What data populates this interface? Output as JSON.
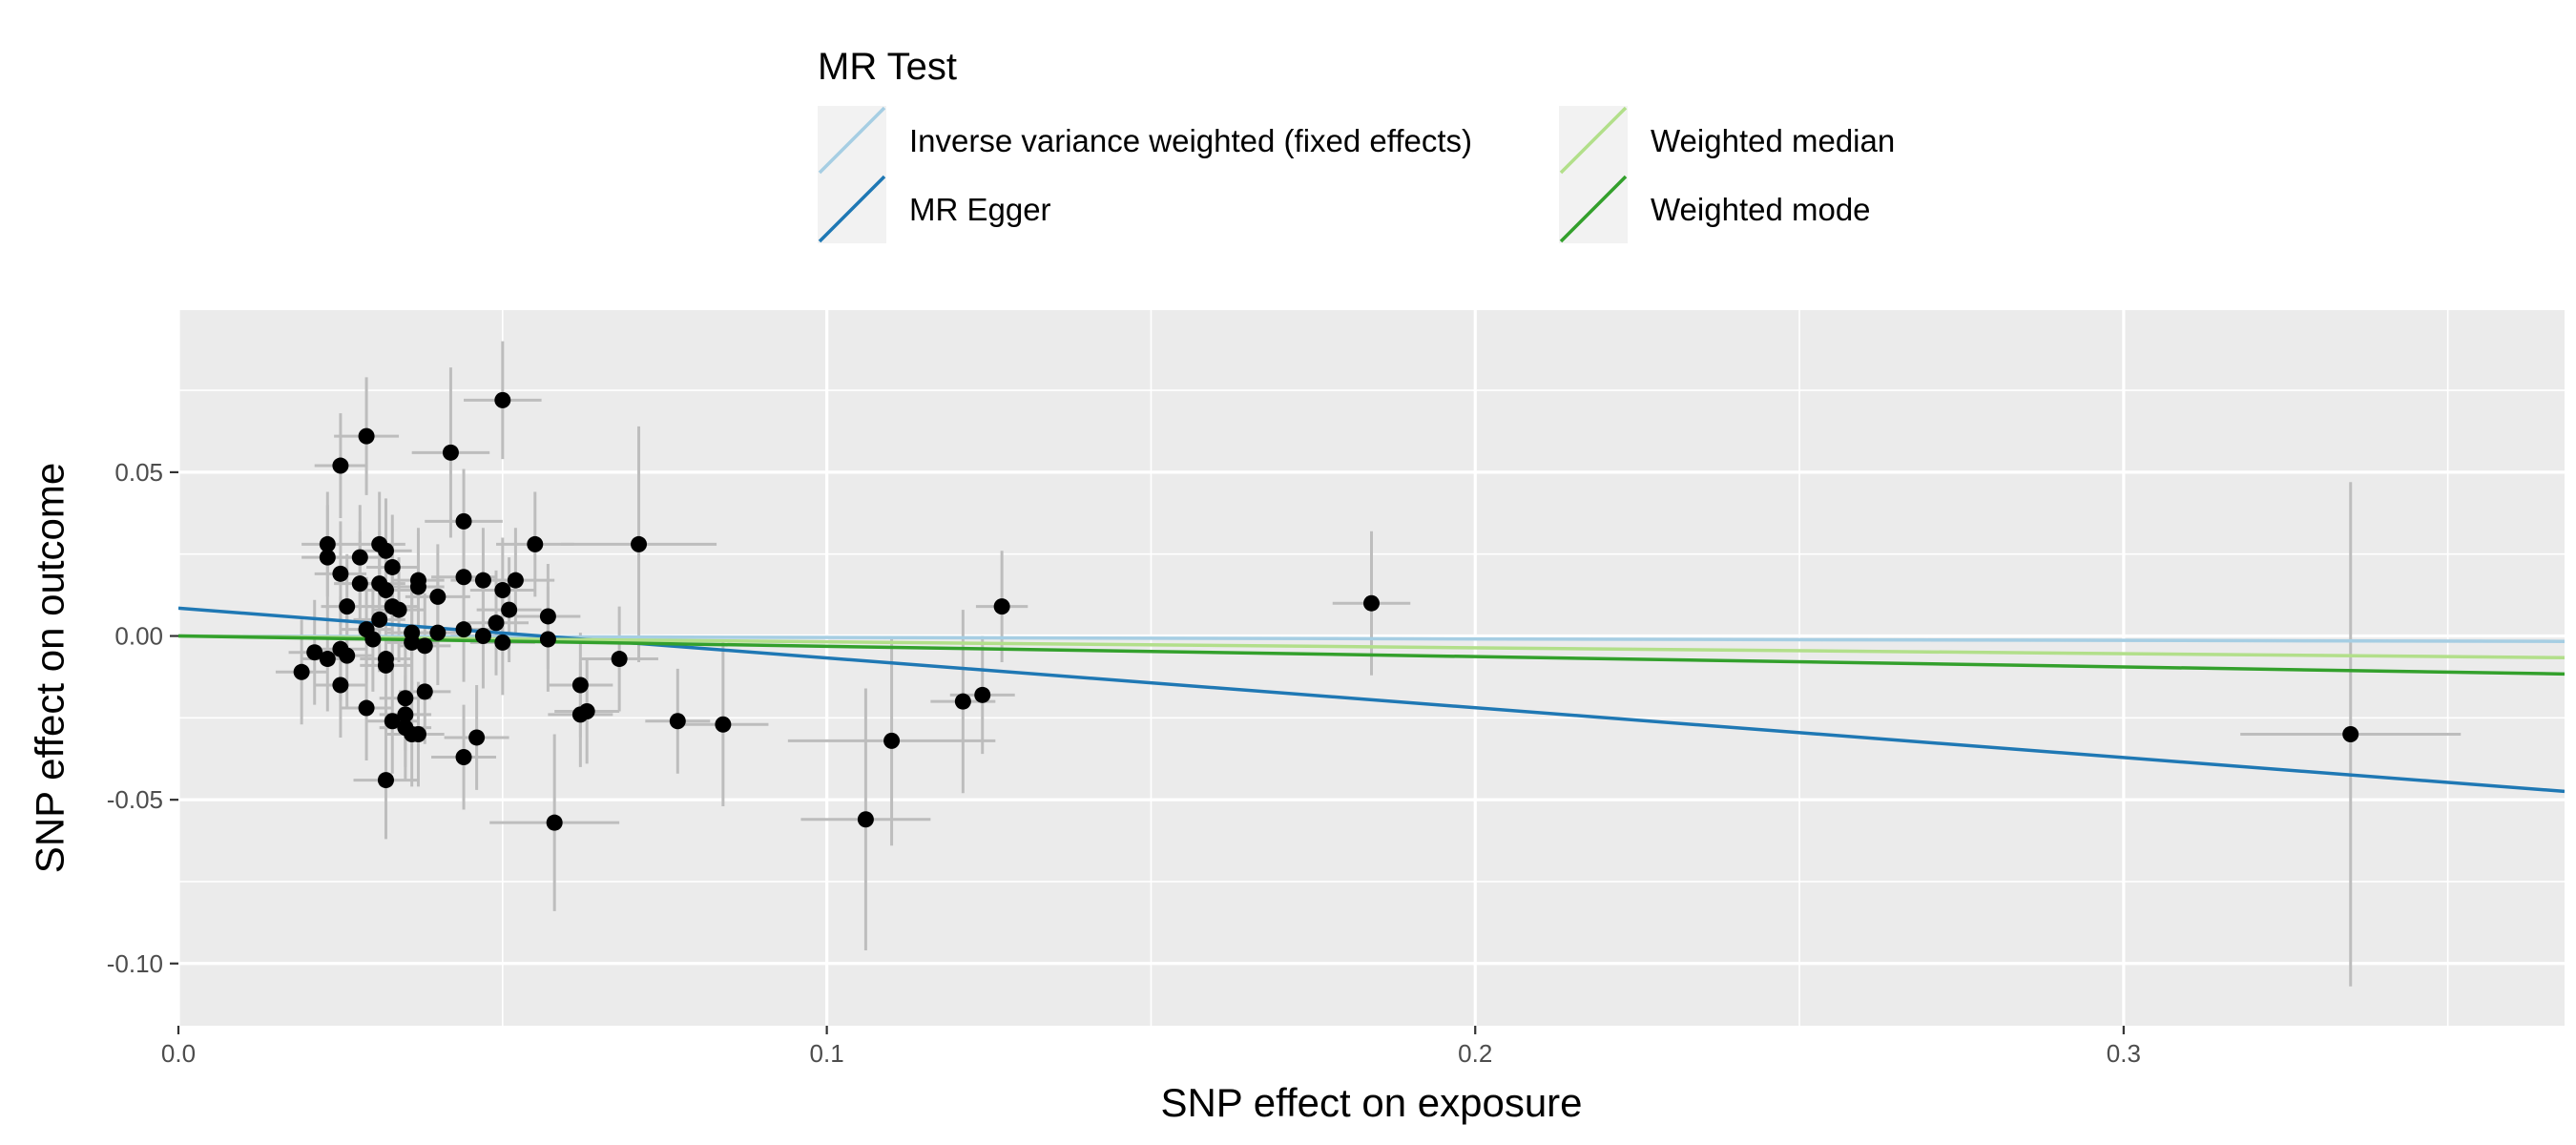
{
  "chart_data": {
    "type": "scatter",
    "title": "",
    "xlabel": "SNP effect on exposure",
    "ylabel": "SNP effect on outcome",
    "xlim": [
      0.0,
      0.368
    ],
    "ylim": [
      -0.119,
      0.0995
    ],
    "x_ticks": [
      0.0,
      0.1,
      0.2,
      0.3
    ],
    "x_tick_labels": [
      "0.0",
      "0.1",
      "0.2",
      "0.3"
    ],
    "y_ticks": [
      -0.1,
      -0.05,
      0.0,
      0.05
    ],
    "y_tick_labels": [
      "-0.10",
      "-0.05",
      "0.00",
      "0.05"
    ],
    "grid": true,
    "legend": {
      "title": "MR Test",
      "placement": "top",
      "entries": [
        {
          "label": "Inverse variance weighted (fixed effects)",
          "color": "#a6cee3"
        },
        {
          "label": "MR Egger",
          "color": "#1f78b4"
        },
        {
          "label": "Weighted median",
          "color": "#b2df8a"
        },
        {
          "label": "Weighted mode",
          "color": "#33a02c"
        }
      ]
    },
    "lines": [
      {
        "name": "Inverse variance weighted (fixed effects)",
        "color": "#a6cee3",
        "intercept": 0.0,
        "slope": -0.0045
      },
      {
        "name": "MR Egger",
        "color": "#1f78b4",
        "intercept": 0.0085,
        "slope": -0.152
      },
      {
        "name": "Weighted median",
        "color": "#b2df8a",
        "intercept": 0.0,
        "slope": -0.018
      },
      {
        "name": "Weighted mode",
        "color": "#33a02c",
        "intercept": 0.0,
        "slope": -0.0315
      }
    ],
    "points": [
      {
        "x": 0.05,
        "y": 0.072,
        "xerr": 0.006,
        "yerr": 0.018
      },
      {
        "x": 0.029,
        "y": 0.061,
        "xerr": 0.005,
        "yerr": 0.018
      },
      {
        "x": 0.042,
        "y": 0.056,
        "xerr": 0.006,
        "yerr": 0.026
      },
      {
        "x": 0.025,
        "y": 0.052,
        "xerr": 0.004,
        "yerr": 0.016
      },
      {
        "x": 0.044,
        "y": 0.035,
        "xerr": 0.006,
        "yerr": 0.016
      },
      {
        "x": 0.071,
        "y": 0.028,
        "xerr": 0.012,
        "yerr": 0.036
      },
      {
        "x": 0.055,
        "y": 0.028,
        "xerr": 0.006,
        "yerr": 0.016
      },
      {
        "x": 0.023,
        "y": 0.028,
        "xerr": 0.004,
        "yerr": 0.016
      },
      {
        "x": 0.031,
        "y": 0.028,
        "xerr": 0.004,
        "yerr": 0.016
      },
      {
        "x": 0.032,
        "y": 0.026,
        "xerr": 0.004,
        "yerr": 0.016
      },
      {
        "x": 0.023,
        "y": 0.024,
        "xerr": 0.004,
        "yerr": 0.016
      },
      {
        "x": 0.028,
        "y": 0.024,
        "xerr": 0.004,
        "yerr": 0.016
      },
      {
        "x": 0.033,
        "y": 0.021,
        "xerr": 0.004,
        "yerr": 0.016
      },
      {
        "x": 0.025,
        "y": 0.019,
        "xerr": 0.004,
        "yerr": 0.016
      },
      {
        "x": 0.044,
        "y": 0.018,
        "xerr": 0.005,
        "yerr": 0.016
      },
      {
        "x": 0.037,
        "y": 0.017,
        "xerr": 0.004,
        "yerr": 0.016
      },
      {
        "x": 0.047,
        "y": 0.017,
        "xerr": 0.005,
        "yerr": 0.016
      },
      {
        "x": 0.052,
        "y": 0.017,
        "xerr": 0.006,
        "yerr": 0.016
      },
      {
        "x": 0.028,
        "y": 0.016,
        "xerr": 0.004,
        "yerr": 0.016
      },
      {
        "x": 0.031,
        "y": 0.016,
        "xerr": 0.004,
        "yerr": 0.016
      },
      {
        "x": 0.037,
        "y": 0.015,
        "xerr": 0.004,
        "yerr": 0.016
      },
      {
        "x": 0.05,
        "y": 0.014,
        "xerr": 0.005,
        "yerr": 0.016
      },
      {
        "x": 0.032,
        "y": 0.014,
        "xerr": 0.004,
        "yerr": 0.016
      },
      {
        "x": 0.04,
        "y": 0.012,
        "xerr": 0.005,
        "yerr": 0.016
      },
      {
        "x": 0.033,
        "y": 0.009,
        "xerr": 0.004,
        "yerr": 0.016
      },
      {
        "x": 0.026,
        "y": 0.009,
        "xerr": 0.004,
        "yerr": 0.016
      },
      {
        "x": 0.127,
        "y": 0.009,
        "xerr": 0.004,
        "yerr": 0.017
      },
      {
        "x": 0.034,
        "y": 0.008,
        "xerr": 0.004,
        "yerr": 0.016
      },
      {
        "x": 0.051,
        "y": 0.008,
        "xerr": 0.005,
        "yerr": 0.016
      },
      {
        "x": 0.184,
        "y": 0.01,
        "xerr": 0.006,
        "yerr": 0.022
      },
      {
        "x": 0.057,
        "y": 0.006,
        "xerr": 0.005,
        "yerr": 0.016
      },
      {
        "x": 0.031,
        "y": 0.005,
        "xerr": 0.004,
        "yerr": 0.016
      },
      {
        "x": 0.049,
        "y": 0.004,
        "xerr": 0.005,
        "yerr": 0.016
      },
      {
        "x": 0.029,
        "y": 0.002,
        "xerr": 0.004,
        "yerr": 0.016
      },
      {
        "x": 0.044,
        "y": 0.002,
        "xerr": 0.005,
        "yerr": 0.016
      },
      {
        "x": 0.036,
        "y": 0.001,
        "xerr": 0.004,
        "yerr": 0.016
      },
      {
        "x": 0.04,
        "y": 0.001,
        "xerr": 0.005,
        "yerr": 0.016
      },
      {
        "x": 0.047,
        "y": 0.0,
        "xerr": 0.005,
        "yerr": 0.016
      },
      {
        "x": 0.03,
        "y": -0.001,
        "xerr": 0.004,
        "yerr": 0.016
      },
      {
        "x": 0.057,
        "y": -0.001,
        "xerr": 0.005,
        "yerr": 0.016
      },
      {
        "x": 0.05,
        "y": -0.002,
        "xerr": 0.005,
        "yerr": 0.016
      },
      {
        "x": 0.036,
        "y": -0.002,
        "xerr": 0.004,
        "yerr": 0.016
      },
      {
        "x": 0.038,
        "y": -0.003,
        "xerr": 0.004,
        "yerr": 0.016
      },
      {
        "x": 0.025,
        "y": -0.004,
        "xerr": 0.004,
        "yerr": 0.016
      },
      {
        "x": 0.021,
        "y": -0.005,
        "xerr": 0.004,
        "yerr": 0.016
      },
      {
        "x": 0.026,
        "y": -0.006,
        "xerr": 0.004,
        "yerr": 0.016
      },
      {
        "x": 0.023,
        "y": -0.007,
        "xerr": 0.004,
        "yerr": 0.016
      },
      {
        "x": 0.032,
        "y": -0.007,
        "xerr": 0.004,
        "yerr": 0.016
      },
      {
        "x": 0.068,
        "y": -0.007,
        "xerr": 0.006,
        "yerr": 0.016
      },
      {
        "x": 0.032,
        "y": -0.009,
        "xerr": 0.004,
        "yerr": 0.016
      },
      {
        "x": 0.019,
        "y": -0.011,
        "xerr": 0.004,
        "yerr": 0.016
      },
      {
        "x": 0.062,
        "y": -0.015,
        "xerr": 0.005,
        "yerr": 0.016
      },
      {
        "x": 0.025,
        "y": -0.015,
        "xerr": 0.004,
        "yerr": 0.016
      },
      {
        "x": 0.038,
        "y": -0.017,
        "xerr": 0.004,
        "yerr": 0.016
      },
      {
        "x": 0.035,
        "y": -0.019,
        "xerr": 0.004,
        "yerr": 0.016
      },
      {
        "x": 0.121,
        "y": -0.02,
        "xerr": 0.005,
        "yerr": 0.028
      },
      {
        "x": 0.124,
        "y": -0.018,
        "xerr": 0.005,
        "yerr": 0.018
      },
      {
        "x": 0.029,
        "y": -0.022,
        "xerr": 0.004,
        "yerr": 0.016
      },
      {
        "x": 0.063,
        "y": -0.023,
        "xerr": 0.005,
        "yerr": 0.016
      },
      {
        "x": 0.062,
        "y": -0.024,
        "xerr": 0.005,
        "yerr": 0.016
      },
      {
        "x": 0.035,
        "y": -0.024,
        "xerr": 0.004,
        "yerr": 0.016
      },
      {
        "x": 0.077,
        "y": -0.026,
        "xerr": 0.005,
        "yerr": 0.016
      },
      {
        "x": 0.033,
        "y": -0.026,
        "xerr": 0.004,
        "yerr": 0.016
      },
      {
        "x": 0.084,
        "y": -0.027,
        "xerr": 0.007,
        "yerr": 0.025
      },
      {
        "x": 0.035,
        "y": -0.028,
        "xerr": 0.004,
        "yerr": 0.016
      },
      {
        "x": 0.036,
        "y": -0.03,
        "xerr": 0.004,
        "yerr": 0.016
      },
      {
        "x": 0.037,
        "y": -0.03,
        "xerr": 0.004,
        "yerr": 0.016
      },
      {
        "x": 0.046,
        "y": -0.031,
        "xerr": 0.005,
        "yerr": 0.016
      },
      {
        "x": 0.11,
        "y": -0.032,
        "xerr": 0.016,
        "yerr": 0.032
      },
      {
        "x": 0.335,
        "y": -0.03,
        "xerr": 0.017,
        "yerr": 0.077
      },
      {
        "x": 0.044,
        "y": -0.037,
        "xerr": 0.005,
        "yerr": 0.016
      },
      {
        "x": 0.032,
        "y": -0.044,
        "xerr": 0.005,
        "yerr": 0.018
      },
      {
        "x": 0.106,
        "y": -0.056,
        "xerr": 0.01,
        "yerr": 0.04
      },
      {
        "x": 0.058,
        "y": -0.057,
        "xerr": 0.01,
        "yerr": 0.027
      }
    ]
  }
}
